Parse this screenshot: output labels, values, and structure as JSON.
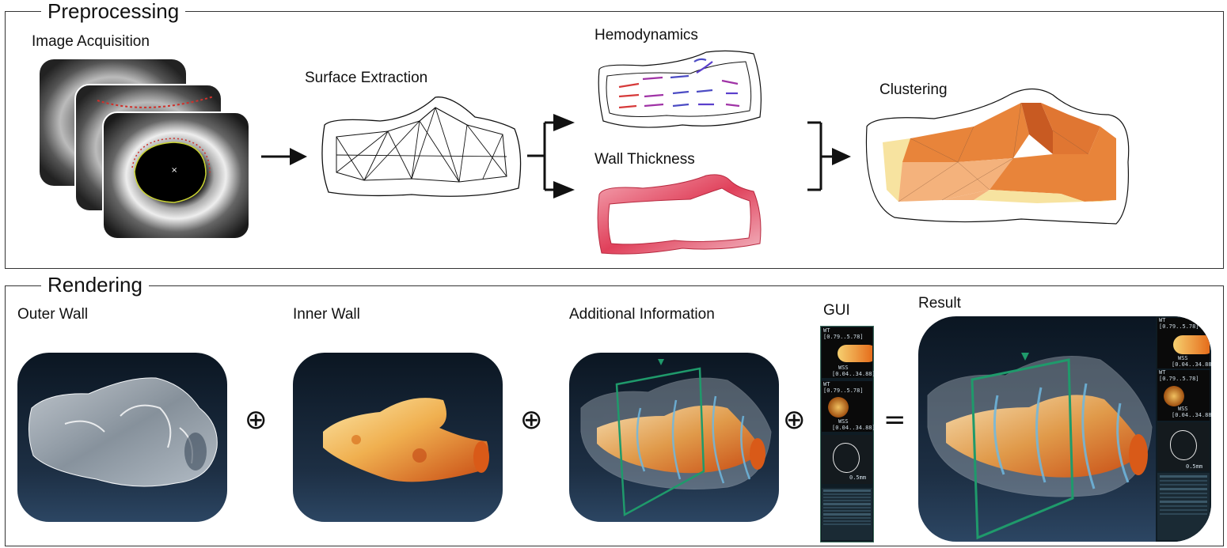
{
  "preprocessing": {
    "title": "Preprocessing",
    "image_acquisition": "Image Acquisition",
    "surface_extraction": "Surface Extraction",
    "hemodynamics": "Hemodynamics",
    "wall_thickness": "Wall Thickness",
    "clustering": "Clustering"
  },
  "rendering": {
    "title": "Rendering",
    "outer_wall": "Outer Wall",
    "inner_wall": "Inner Wall",
    "additional_information": "Additional Information",
    "gui": "GUI",
    "result": "Result",
    "plus_symbol": "⊕",
    "equals_symbol": "="
  },
  "gui_panel": {
    "wt_label_1": "WT",
    "wt_range_1": "[0.79..5.78]",
    "wss_label_1": "WSS",
    "wss_range_1": "[0.04..34.88]",
    "wt_label_2": "WT",
    "wt_range_2": "[0.79..5.78]",
    "wss_label_2": "WSS",
    "wss_range_2": "[0.04..34.88]",
    "scale": "0.5mm"
  },
  "result_panel": {
    "wt_label_1": "WT",
    "wt_range_1": "[0.79..5.78]",
    "wss_label_1": "WSS",
    "wss_range_1": "[0.04..34.88]",
    "wt_label_2": "WT",
    "wt_range_2": "[0.79..5.78]",
    "wss_label_2": "WSS",
    "wss_range_2": "[0.04..34.88]",
    "scale": "0.5mm"
  },
  "colors": {
    "wall_thickness_red": "#e8506a",
    "cluster_orange": "#e8843a",
    "cluster_light": "#f7e3a0",
    "plane_green": "#1f9a6b",
    "ring_blue": "#6fb8e0"
  }
}
